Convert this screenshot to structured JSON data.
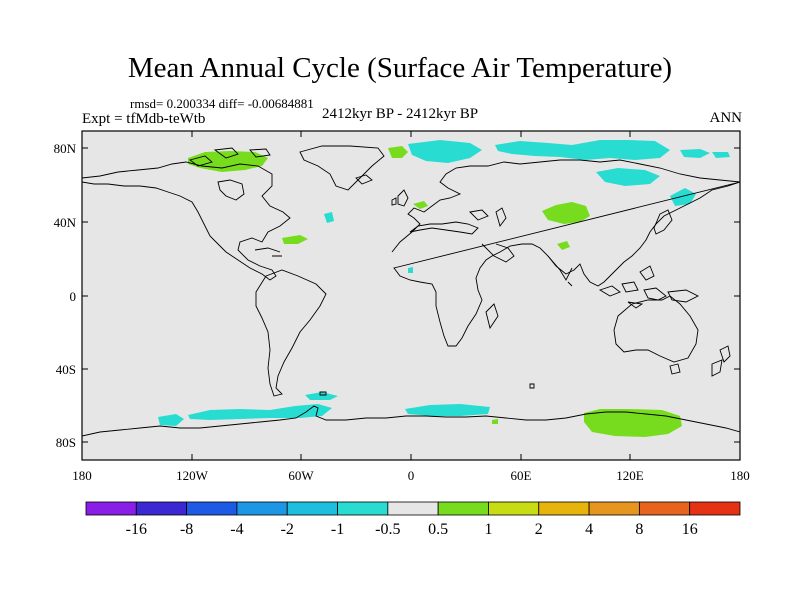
{
  "title": "Mean Annual Cycle (Surface Air Temperature)",
  "stats": "rmsd= 0.200334 diff= -0.00684881",
  "experiment": "Expt = tfMdb-teWtb",
  "period": "2412kyr BP - 2412kyr BP",
  "season": "ANN",
  "lat_labels": [
    "80N",
    "40N",
    "0",
    "40S",
    "80S"
  ],
  "lon_labels": [
    "180",
    "120W",
    "60W",
    "0",
    "60E",
    "120E",
    "180"
  ],
  "colorbar": {
    "colors": [
      "#8a1ee6",
      "#3c28d2",
      "#1e5ae6",
      "#1e96e6",
      "#1ebede",
      "#28dcd2",
      "#e6e6e6",
      "#78dc1e",
      "#c8dc14",
      "#e6b40a",
      "#e6961e",
      "#e6641e",
      "#e63214"
    ],
    "labels": [
      "-16",
      "-8",
      "-4",
      "-2",
      "-1",
      "-0.5",
      "0.5",
      "1",
      "2",
      "4",
      "8",
      "16"
    ]
  }
}
